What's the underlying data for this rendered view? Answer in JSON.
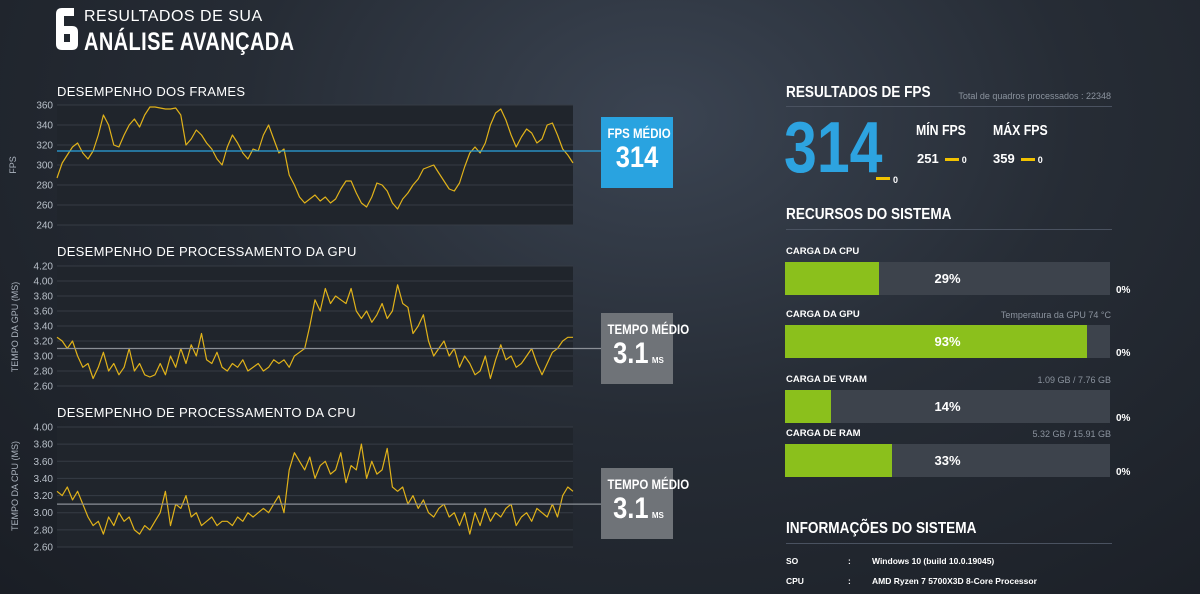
{
  "header": {
    "logo_text": "6",
    "line1": "RESULTADOS DE SUA",
    "line2": "ANÁLISE AVANÇADA"
  },
  "colors": {
    "fps_accent": "#29a3e0",
    "bar_green": "#8bc01c",
    "series_yellow": "#e0b21a",
    "gray_box": "#6f7378"
  },
  "frames": {
    "title": "DESEMPENHO DOS FRAMES",
    "ylabel": "FPS",
    "stat_label": "FPS MÉDIO",
    "stat_value": "314",
    "stat_unit": ""
  },
  "gpu": {
    "title": "DESEMPENHO DE PROCESSAMENTO DA GPU",
    "ylabel": "TEMPO DA GPU (MS)",
    "stat_label": "TEMPO MÉDIO",
    "stat_value": "3.1",
    "stat_unit": "MS"
  },
  "cpu": {
    "title": "DESEMPENHO DE PROCESSAMENTO DA CPU",
    "ylabel": "TEMPO DA CPU (MS)",
    "stat_label": "TEMPO MÉDIO",
    "stat_value": "3.1",
    "stat_unit": "MS"
  },
  "chart_data": [
    {
      "type": "line",
      "title": "DESEMPENHO DOS FRAMES",
      "ylabel": "FPS",
      "yticks": [
        "360",
        "340",
        "320",
        "300",
        "280",
        "260",
        "240"
      ],
      "ylim": [
        240,
        360
      ],
      "avg": 314,
      "values": [
        287,
        302,
        310,
        318,
        322,
        312,
        306,
        314,
        330,
        350,
        340,
        320,
        318,
        330,
        340,
        346,
        338,
        350,
        358,
        358,
        357,
        356,
        356,
        357,
        350,
        320,
        326,
        335,
        330,
        322,
        316,
        306,
        300,
        318,
        330,
        322,
        312,
        306,
        316,
        314,
        330,
        340,
        326,
        312,
        316,
        290,
        280,
        268,
        262,
        266,
        270,
        264,
        268,
        262,
        266,
        276,
        284,
        284,
        272,
        262,
        258,
        268,
        282,
        280,
        274,
        262,
        256,
        266,
        272,
        280,
        286,
        296,
        298,
        300,
        292,
        284,
        276,
        274,
        282,
        298,
        312,
        318,
        312,
        322,
        340,
        352,
        356,
        345,
        330,
        318,
        328,
        336,
        332,
        322,
        326,
        340,
        342,
        330,
        316,
        310,
        302
      ]
    },
    {
      "type": "line",
      "title": "DESEMPENHO DE PROCESSAMENTO DA GPU",
      "ylabel": "TEMPO DA GPU (MS)",
      "yticks": [
        "4.20",
        "4.00",
        "3.80",
        "3.60",
        "3.40",
        "3.20",
        "3.00",
        "2.80",
        "2.60"
      ],
      "ylim": [
        2.6,
        4.2
      ],
      "avg": 3.1,
      "values": [
        3.25,
        3.2,
        3.1,
        3.2,
        3.0,
        2.85,
        2.9,
        2.7,
        2.85,
        3.05,
        2.8,
        2.9,
        2.75,
        2.85,
        3.1,
        2.8,
        2.9,
        2.75,
        2.72,
        2.75,
        2.9,
        2.75,
        3.0,
        2.85,
        3.1,
        2.9,
        3.15,
        3.0,
        3.3,
        2.95,
        2.9,
        3.05,
        2.85,
        2.8,
        2.9,
        2.85,
        2.95,
        2.8,
        2.85,
        2.9,
        2.8,
        2.85,
        2.95,
        2.9,
        2.95,
        2.85,
        3.0,
        3.05,
        3.1,
        3.4,
        3.75,
        3.6,
        3.9,
        3.7,
        3.8,
        3.75,
        3.7,
        3.9,
        3.6,
        3.5,
        3.6,
        3.45,
        3.55,
        3.7,
        3.5,
        3.6,
        3.95,
        3.7,
        3.65,
        3.3,
        3.4,
        3.55,
        3.2,
        3.0,
        3.1,
        3.2,
        3.0,
        3.1,
        2.85,
        3.0,
        2.9,
        2.75,
        2.8,
        3.0,
        2.7,
        2.95,
        3.15,
        2.95,
        3.0,
        2.85,
        2.9,
        3.0,
        3.1,
        2.9,
        2.75,
        2.9,
        3.05,
        3.1,
        3.2,
        3.25,
        3.25
      ]
    },
    {
      "type": "line",
      "title": "DESEMPENHO DE PROCESSAMENTO DA CPU",
      "ylabel": "TEMPO DA CPU (MS)",
      "yticks": [
        "4.00",
        "3.80",
        "3.60",
        "3.40",
        "3.20",
        "3.00",
        "2.80",
        "2.60"
      ],
      "ylim": [
        2.6,
        4.0
      ],
      "avg": 3.1,
      "values": [
        3.25,
        3.2,
        3.3,
        3.15,
        3.25,
        3.1,
        2.95,
        2.85,
        2.9,
        2.75,
        2.95,
        2.85,
        3.0,
        2.9,
        2.95,
        2.8,
        2.75,
        2.85,
        2.8,
        2.9,
        3.0,
        3.25,
        2.85,
        3.1,
        3.05,
        3.2,
        2.95,
        3.0,
        2.85,
        2.9,
        2.95,
        2.85,
        2.9,
        2.9,
        2.85,
        2.95,
        2.9,
        3.0,
        2.95,
        3.0,
        3.05,
        3.0,
        3.1,
        3.2,
        3.0,
        3.5,
        3.7,
        3.6,
        3.5,
        3.65,
        3.4,
        3.55,
        3.6,
        3.45,
        3.5,
        3.7,
        3.35,
        3.55,
        3.5,
        3.8,
        3.4,
        3.6,
        3.45,
        3.5,
        3.75,
        3.3,
        3.25,
        3.3,
        3.1,
        3.2,
        3.05,
        3.15,
        3.0,
        2.95,
        3.05,
        3.1,
        2.95,
        3.0,
        2.85,
        3.0,
        2.75,
        3.0,
        2.85,
        3.05,
        2.9,
        3.0,
        2.95,
        3.05,
        3.1,
        2.85,
        2.95,
        3.0,
        2.9,
        3.05,
        3.0,
        2.95,
        3.1,
        2.95,
        3.2,
        3.3,
        3.25
      ]
    }
  ],
  "fps_results": {
    "title": "RESULTADOS DE FPS",
    "total_frames": "Total de quadros processados : 22348",
    "avg": "314",
    "avg_zero": "0",
    "min_label": "MÍN FPS",
    "min_value": "251",
    "min_zero": "0",
    "max_label": "MÁX FPS",
    "max_value": "359",
    "max_zero": "0"
  },
  "resources": {
    "title": "RECURSOS DO SISTEMA",
    "items": [
      {
        "label": "CARGA DA CPU",
        "note": "",
        "percent": 29,
        "text": "29%",
        "zero": "0%"
      },
      {
        "label": "CARGA DA GPU",
        "note": "Temperatura da GPU 74 °C",
        "percent": 93,
        "text": "93%",
        "zero": "0%"
      },
      {
        "label": "CARGA DE VRAM",
        "note": "1.09 GB / 7.76 GB",
        "percent": 14,
        "text": "14%",
        "zero": "0%"
      },
      {
        "label": "CARGA DE RAM",
        "note": "5.32 GB / 15.91 GB",
        "percent": 33,
        "text": "33%",
        "zero": "0%"
      }
    ]
  },
  "sysinfo": {
    "title": "INFORMAÇÕES DO SISTEMA",
    "rows": [
      {
        "key": "SO",
        "sep": ":",
        "value": "Windows 10 (build 10.0.19045)"
      },
      {
        "key": "CPU",
        "sep": ":",
        "value": "AMD Ryzen 7 5700X3D 8-Core Processor"
      }
    ]
  }
}
